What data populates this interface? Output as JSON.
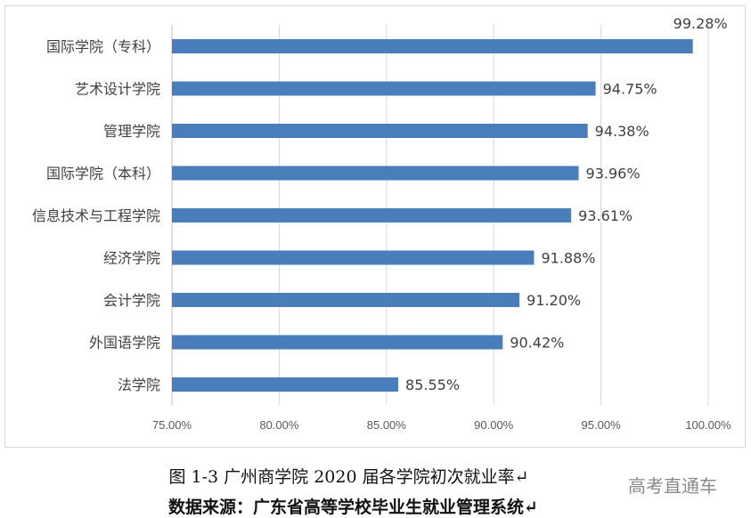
{
  "chart_data": {
    "type": "bar",
    "orientation": "horizontal",
    "categories": [
      "国际学院（专科）",
      "艺术设计学院",
      "管理学院",
      "国际学院（本科）",
      "信息技术与工程学院",
      "经济学院",
      "会计学院",
      "外国语学院",
      "法学院"
    ],
    "values": [
      99.28,
      94.75,
      94.38,
      93.96,
      93.61,
      91.88,
      91.2,
      90.42,
      85.55
    ],
    "data_labels": [
      "99.28%",
      "94.75%",
      "94.38%",
      "93.96%",
      "93.61%",
      "91.88%",
      "91.20%",
      "90.42%",
      "85.55%"
    ],
    "xlim": [
      75,
      100
    ],
    "xticks": [
      "75.00%",
      "80.00%",
      "85.00%",
      "90.00%",
      "95.00%",
      "100.00%"
    ],
    "grid": true,
    "bar_color": "#4a7ebb"
  },
  "caption": "图 1-3  广州商学院 2020 届各学院初次就业率↵",
  "source": "数据来源：广东省高等学校毕业生就业管理系统↵",
  "watermark": "高考直通车"
}
